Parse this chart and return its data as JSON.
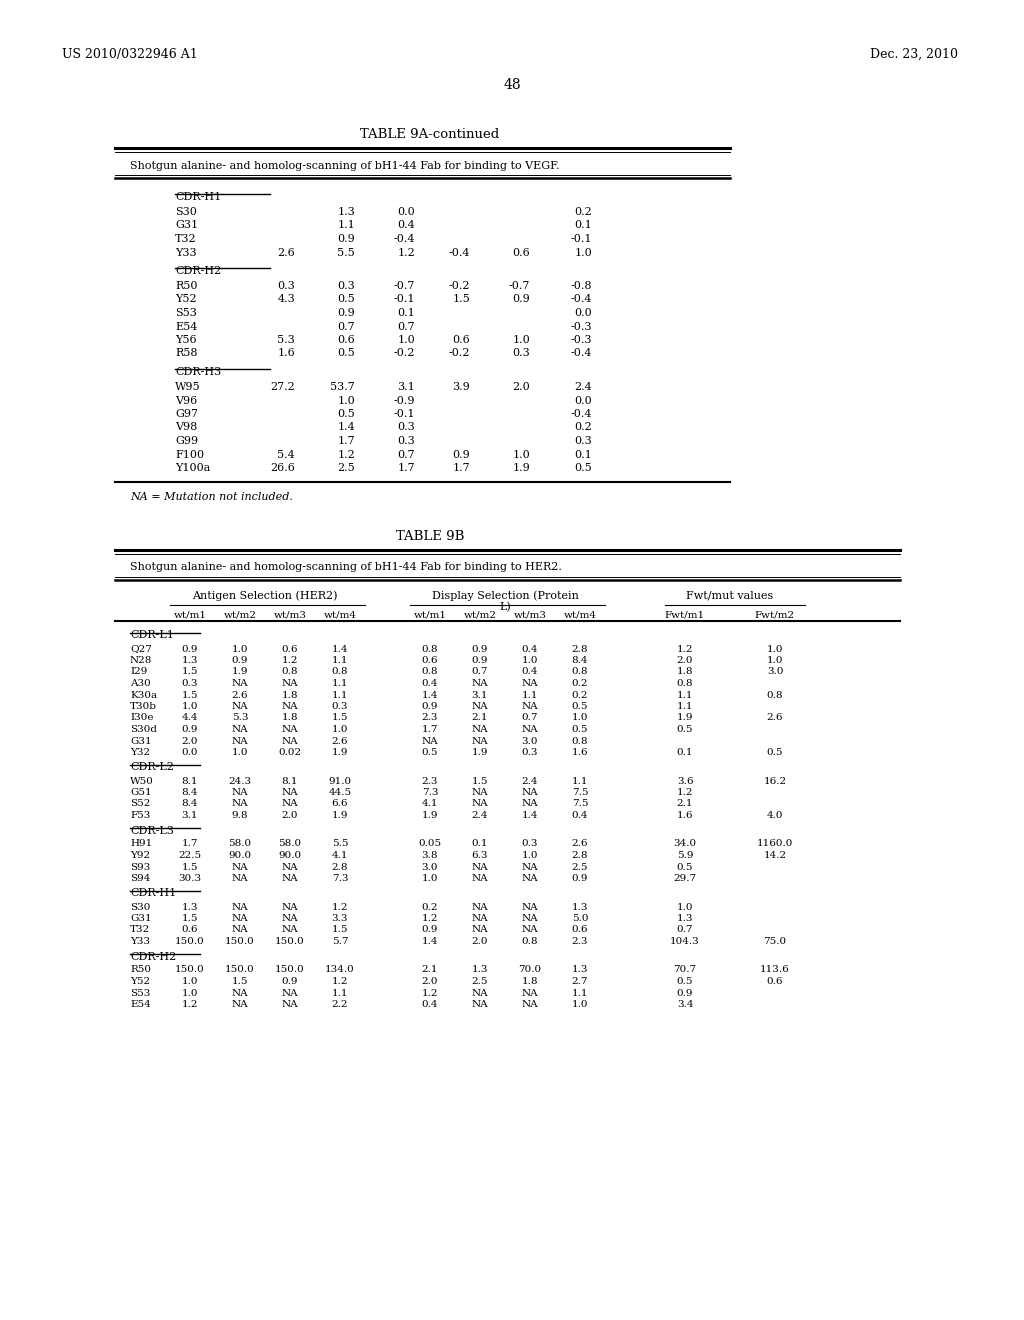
{
  "page_header_left": "US 2010/0322946 A1",
  "page_header_right": "Dec. 23, 2010",
  "page_number": "48",
  "background_color": "#ffffff",
  "text_color": "#000000",
  "table9a_title": "TABLE 9A-continued",
  "table9a_subtitle": "Shotgun alanine- and homolog-scanning of bH1-44 Fab for binding to VEGF.",
  "table9a_sections": [
    {
      "header": "CDR-H1",
      "rows": [
        [
          "S30",
          "",
          "1.3",
          "0.0",
          "",
          "",
          "0.2"
        ],
        [
          "G31",
          "",
          "1.1",
          "0.4",
          "",
          "",
          "0.1"
        ],
        [
          "T32",
          "",
          "0.9",
          "-0.4",
          "",
          "",
          "-0.1"
        ],
        [
          "Y33",
          "2.6",
          "5.5",
          "1.2",
          "-0.4",
          "0.6",
          "1.0"
        ]
      ]
    },
    {
      "header": "CDR-H2",
      "rows": [
        [
          "R50",
          "0.3",
          "0.3",
          "-0.7",
          "-0.2",
          "-0.7",
          "-0.8"
        ],
        [
          "Y52",
          "4.3",
          "0.5",
          "-0.1",
          "1.5",
          "0.9",
          "-0.4"
        ],
        [
          "S53",
          "",
          "0.9",
          "0.1",
          "",
          "",
          "0.0"
        ],
        [
          "E54",
          "",
          "0.7",
          "0.7",
          "",
          "",
          "-0.3"
        ],
        [
          "Y56",
          "5.3",
          "0.6",
          "1.0",
          "0.6",
          "1.0",
          "-0.3"
        ],
        [
          "R58",
          "1.6",
          "0.5",
          "-0.2",
          "-0.2",
          "0.3",
          "-0.4"
        ]
      ]
    },
    {
      "header": "CDR-H3",
      "rows": [
        [
          "W95",
          "27.2",
          "53.7",
          "3.1",
          "3.9",
          "2.0",
          "2.4"
        ],
        [
          "V96",
          "",
          "1.0",
          "-0.9",
          "",
          "",
          "0.0"
        ],
        [
          "G97",
          "",
          "0.5",
          "-0.1",
          "",
          "",
          "-0.4"
        ],
        [
          "V98",
          "",
          "1.4",
          "0.3",
          "",
          "",
          "0.2"
        ],
        [
          "G99",
          "",
          "1.7",
          "0.3",
          "",
          "",
          "0.3"
        ],
        [
          "F100",
          "5.4",
          "1.2",
          "0.7",
          "0.9",
          "1.0",
          "0.1"
        ],
        [
          "Y100a",
          "26.6",
          "2.5",
          "1.7",
          "1.7",
          "1.9",
          "0.5"
        ]
      ]
    }
  ],
  "table9a_footer": "NA = Mutation not included.",
  "table9b_title": "TABLE 9B",
  "table9b_subtitle": "Shotgun alanine- and homolog-scanning of bH1-44 Fab for binding to HER2.",
  "table9b_col_group1": "Antigen Selection (HER2)",
  "table9b_col_group2_line1": "Display Selection (Protein",
  "table9b_col_group2_line2": "L)",
  "table9b_col_group3": "Fwt/mut values",
  "table9b_cols": [
    "wt/m1",
    "wt/m2",
    "wt/m3",
    "wt/m4",
    "wt/m1",
    "wt/m2",
    "wt/m3",
    "wt/m4",
    "Fwt/m1",
    "Fwt/m2"
  ],
  "table9b_sections": [
    {
      "header": "CDR-L1",
      "rows": [
        [
          "Q27",
          "0.9",
          "1.0",
          "0.6",
          "1.4",
          "0.8",
          "0.9",
          "0.4",
          "2.8",
          "1.2",
          "1.0"
        ],
        [
          "N28",
          "1.3",
          "0.9",
          "1.2",
          "1.1",
          "0.6",
          "0.9",
          "1.0",
          "8.4",
          "2.0",
          "1.0"
        ],
        [
          "I29",
          "1.5",
          "1.9",
          "0.8",
          "0.8",
          "0.8",
          "0.7",
          "0.4",
          "0.8",
          "1.8",
          "3.0"
        ],
        [
          "A30",
          "0.3",
          "NA",
          "NA",
          "1.1",
          "0.4",
          "NA",
          "NA",
          "0.2",
          "0.8",
          ""
        ],
        [
          "K30a",
          "1.5",
          "2.6",
          "1.8",
          "1.1",
          "1.4",
          "3.1",
          "1.1",
          "0.2",
          "1.1",
          "0.8"
        ],
        [
          "T30b",
          "1.0",
          "NA",
          "NA",
          "0.3",
          "0.9",
          "NA",
          "NA",
          "0.5",
          "1.1",
          ""
        ],
        [
          "I30e",
          "4.4",
          "5.3",
          "1.8",
          "1.5",
          "2.3",
          "2.1",
          "0.7",
          "1.0",
          "1.9",
          "2.6"
        ],
        [
          "S30d",
          "0.9",
          "NA",
          "NA",
          "1.0",
          "1.7",
          "NA",
          "NA",
          "0.5",
          "0.5",
          ""
        ],
        [
          "G31",
          "2.0",
          "NA",
          "NA",
          "2.6",
          "NA",
          "NA",
          "3.0",
          "0.8",
          "",
          ""
        ],
        [
          "Y32",
          "0.0",
          "1.0",
          "0.02",
          "1.9",
          "0.5",
          "1.9",
          "0.3",
          "1.6",
          "0.1",
          "0.5"
        ]
      ]
    },
    {
      "header": "CDR-L2",
      "rows": [
        [
          "W50",
          "8.1",
          "24.3",
          "8.1",
          "91.0",
          "2.3",
          "1.5",
          "2.4",
          "1.1",
          "3.6",
          "16.2"
        ],
        [
          "G51",
          "8.4",
          "NA",
          "NA",
          "44.5",
          "7.3",
          "NA",
          "NA",
          "7.5",
          "1.2",
          ""
        ],
        [
          "S52",
          "8.4",
          "NA",
          "NA",
          "6.6",
          "4.1",
          "NA",
          "NA",
          "7.5",
          "2.1",
          ""
        ],
        [
          "F53",
          "3.1",
          "9.8",
          "2.0",
          "1.9",
          "1.9",
          "2.4",
          "1.4",
          "0.4",
          "1.6",
          "4.0"
        ]
      ]
    },
    {
      "header": "CDR-L3",
      "rows": [
        [
          "H91",
          "1.7",
          "58.0",
          "58.0",
          "5.5",
          "0.05",
          "0.1",
          "0.3",
          "2.6",
          "34.0",
          "1160.0"
        ],
        [
          "Y92",
          "22.5",
          "90.0",
          "90.0",
          "4.1",
          "3.8",
          "6.3",
          "1.0",
          "2.8",
          "5.9",
          "14.2"
        ],
        [
          "S93",
          "1.5",
          "NA",
          "NA",
          "2.8",
          "3.0",
          "NA",
          "NA",
          "2.5",
          "0.5",
          ""
        ],
        [
          "S94",
          "30.3",
          "NA",
          "NA",
          "7.3",
          "1.0",
          "NA",
          "NA",
          "0.9",
          "29.7",
          ""
        ]
      ]
    },
    {
      "header": "CDR-H1",
      "rows": [
        [
          "S30",
          "1.3",
          "NA",
          "NA",
          "1.2",
          "0.2",
          "NA",
          "NA",
          "1.3",
          "1.0",
          ""
        ],
        [
          "G31",
          "1.5",
          "NA",
          "NA",
          "3.3",
          "1.2",
          "NA",
          "NA",
          "5.0",
          "1.3",
          ""
        ],
        [
          "T32",
          "0.6",
          "NA",
          "NA",
          "1.5",
          "0.9",
          "NA",
          "NA",
          "0.6",
          "0.7",
          ""
        ],
        [
          "Y33",
          "150.0",
          "150.0",
          "150.0",
          "5.7",
          "1.4",
          "2.0",
          "0.8",
          "2.3",
          "104.3",
          "75.0"
        ]
      ]
    },
    {
      "header": "CDR-H2",
      "rows": [
        [
          "R50",
          "150.0",
          "150.0",
          "150.0",
          "134.0",
          "2.1",
          "1.3",
          "70.0",
          "1.3",
          "70.7",
          "113.6"
        ],
        [
          "Y52",
          "1.0",
          "1.5",
          "0.9",
          "1.2",
          "2.0",
          "2.5",
          "1.8",
          "2.7",
          "0.5",
          "0.6"
        ],
        [
          "S53",
          "1.0",
          "NA",
          "NA",
          "1.1",
          "1.2",
          "NA",
          "NA",
          "1.1",
          "0.9",
          ""
        ],
        [
          "E54",
          "1.2",
          "NA",
          "NA",
          "2.2",
          "0.4",
          "NA",
          "NA",
          "1.0",
          "3.4",
          ""
        ]
      ]
    }
  ]
}
